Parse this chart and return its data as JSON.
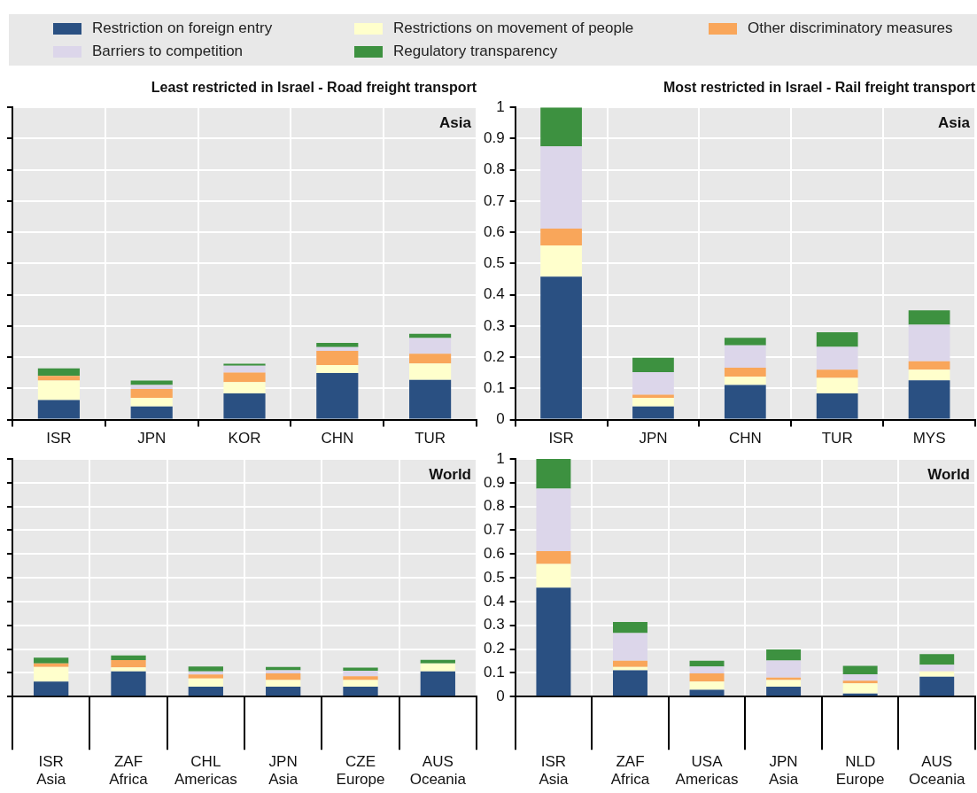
{
  "chart_data": [
    {
      "type": "bar",
      "title": "Least restricted in Israel - Road freight transport",
      "categories": [
        "ISR",
        "JPN",
        "KOR",
        "CHN",
        "TUR"
      ],
      "stacked": true,
      "ylim": [
        0,
        1
      ],
      "yticks": [
        0,
        0.1,
        0.2,
        0.3,
        0.4,
        0.5,
        0.6,
        0.7,
        0.8,
        0.9,
        1
      ],
      "tick_labels": "x",
      "grid": true,
      "legend": "top",
      "annotations": [
        "Asia"
      ],
      "series": [
        {
          "name": "Restriction on foreign entry",
          "color": "#2a5082",
          "values": [
            0.063,
            0.042,
            0.084,
            0.149,
            0.127
          ]
        },
        {
          "name": "Restrictions on movement of people",
          "color": "#ffffcc",
          "values": [
            0.062,
            0.028,
            0.036,
            0.026,
            0.053
          ]
        },
        {
          "name": "Other discriminatory measures",
          "color": "#f9a65a",
          "values": [
            0.015,
            0.028,
            0.031,
            0.045,
            0.031
          ]
        },
        {
          "name": "Barriers to competition",
          "color": "#dcd6ea",
          "values": [
            0,
            0.013,
            0.022,
            0.012,
            0.05
          ]
        },
        {
          "name": "Regulatory transparency",
          "color": "#3d9140",
          "values": [
            0.024,
            0.014,
            0.006,
            0.014,
            0.014
          ]
        }
      ]
    },
    {
      "type": "bar",
      "title": "Most restricted in Israel - Rail freight transport",
      "categories": [
        "ISR",
        "JPN",
        "CHN",
        "TUR",
        "MYS"
      ],
      "stacked": true,
      "ylim": [
        0,
        1
      ],
      "yticks": [
        0,
        0.1,
        0.2,
        0.3,
        0.4,
        0.5,
        0.6,
        0.7,
        0.8,
        0.9,
        1
      ],
      "grid": true,
      "annotations": [
        "Asia"
      ],
      "series": [
        {
          "color": "#2a5082",
          "values": [
            0.458,
            0.042,
            0.111,
            0.084,
            0.126
          ]
        },
        {
          "color": "#ffffcc",
          "values": [
            0.1,
            0.028,
            0.027,
            0.05,
            0.034
          ]
        },
        {
          "color": "#f9a65a",
          "values": [
            0.054,
            0.01,
            0.028,
            0.026,
            0.027
          ]
        },
        {
          "color": "#dcd6ea",
          "values": [
            0.263,
            0.072,
            0.072,
            0.073,
            0.117
          ]
        },
        {
          "color": "#3d9140",
          "values": [
            0.125,
            0.046,
            0.024,
            0.047,
            0.046
          ]
        }
      ]
    },
    {
      "type": "bar",
      "categories": [
        "ISR\nAsia",
        "ZAF\nAfrica",
        "CHL\nAmericas",
        "JPN\nAsia",
        "CZE\nEurope",
        "AUS\nOceania"
      ],
      "stacked": true,
      "ylim": [
        0,
        1
      ],
      "yticks": [
        0,
        0.1,
        0.2,
        0.3,
        0.4,
        0.5,
        0.6,
        0.7,
        0.8,
        0.9,
        1
      ],
      "tick_labels": "x",
      "grid": true,
      "annotations": [
        "World"
      ],
      "series": [
        {
          "color": "#2a5082",
          "values": [
            0.063,
            0.106,
            0.042,
            0.042,
            0.042,
            0.106
          ]
        },
        {
          "color": "#ffffcc",
          "values": [
            0.062,
            0.017,
            0.034,
            0.028,
            0.028,
            0.034
          ]
        },
        {
          "color": "#f9a65a",
          "values": [
            0.015,
            0.031,
            0.017,
            0.028,
            0.016,
            0
          ]
        },
        {
          "color": "#dcd6ea",
          "values": [
            0,
            0,
            0.013,
            0.013,
            0.023,
            0
          ]
        },
        {
          "color": "#3d9140",
          "values": [
            0.024,
            0.019,
            0.021,
            0.014,
            0.013,
            0.015
          ]
        }
      ]
    },
    {
      "type": "bar",
      "categories": [
        "ISR\nAsia",
        "ZAF\nAfrica",
        "USA\nAmericas",
        "JPN\nAsia",
        "NLD\nEurope",
        "AUS\nOceania"
      ],
      "stacked": true,
      "ylim": [
        0,
        1
      ],
      "yticks": [
        0,
        0.1,
        0.2,
        0.3,
        0.4,
        0.5,
        0.6,
        0.7,
        0.8,
        0.9,
        1
      ],
      "grid": true,
      "annotations": [
        "World"
      ],
      "series": [
        {
          "color": "#2a5082",
          "values": [
            0.458,
            0.111,
            0.029,
            0.042,
            0.013,
            0.084
          ]
        },
        {
          "color": "#ffffcc",
          "values": [
            0.1,
            0.014,
            0.034,
            0.028,
            0.043,
            0.022
          ]
        },
        {
          "color": "#f9a65a",
          "values": [
            0.054,
            0.026,
            0.035,
            0.01,
            0.011,
            0
          ]
        },
        {
          "color": "#dcd6ea",
          "values": [
            0.263,
            0.116,
            0.029,
            0.072,
            0.027,
            0.028
          ]
        },
        {
          "color": "#3d9140",
          "values": [
            0.125,
            0.047,
            0.024,
            0.046,
            0.035,
            0.045
          ]
        }
      ]
    }
  ]
}
